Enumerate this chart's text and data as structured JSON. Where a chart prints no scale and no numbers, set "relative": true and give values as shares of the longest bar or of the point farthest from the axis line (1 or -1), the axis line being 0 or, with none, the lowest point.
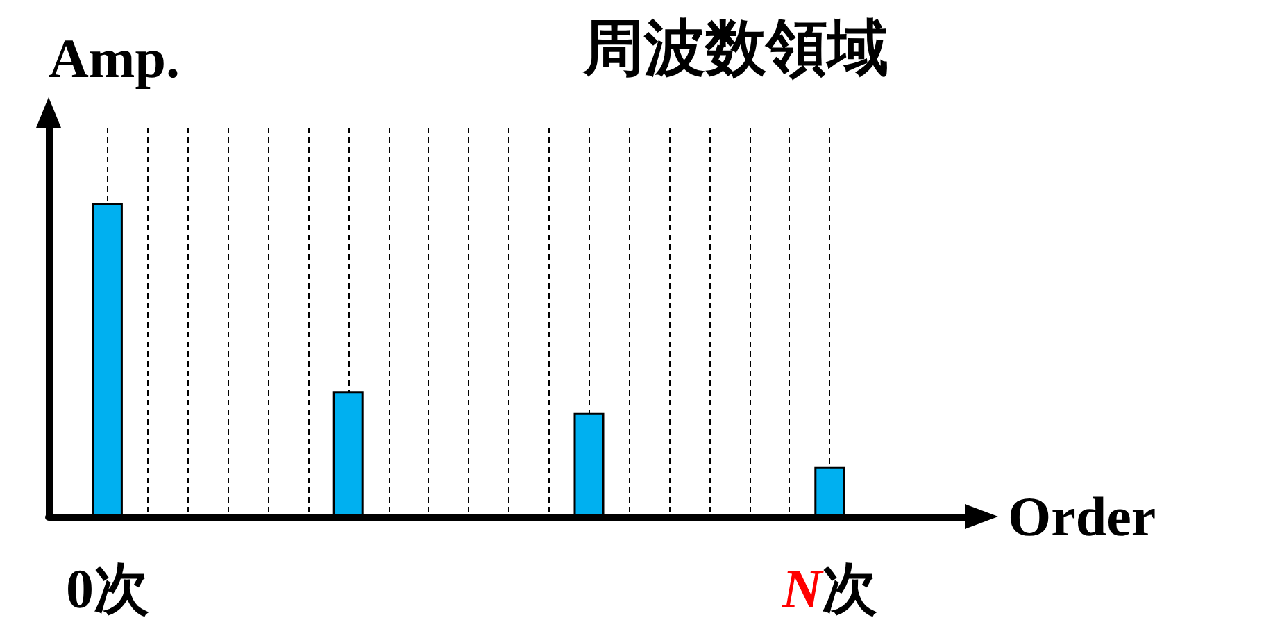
{
  "chart_data": {
    "type": "bar",
    "relative": true,
    "title": "周波数領域",
    "xlabel": "Order",
    "ylabel": "Amp.",
    "categories": [
      "0次",
      null,
      null,
      null,
      null,
      null,
      null,
      null,
      null,
      null,
      null,
      null,
      null,
      null,
      null,
      null,
      null,
      null,
      "N次"
    ],
    "values": [
      1,
      null,
      null,
      null,
      null,
      null,
      0.4,
      null,
      null,
      null,
      null,
      null,
      0.33,
      null,
      null,
      null,
      null,
      null,
      0.16
    ],
    "color": "#00b0f0",
    "grid": "x"
  }
}
